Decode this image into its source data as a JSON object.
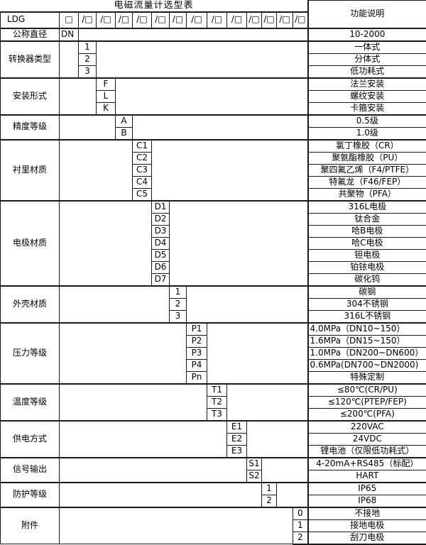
{
  "title": "电磁流量计选型表",
  "right_header": "功能说明",
  "model": {
    "prefix": "LDG",
    "first_box": "□",
    "slash_boxes": [
      "/□",
      "/□",
      "/□",
      "/□",
      "/□",
      "/□",
      "/□",
      "/□",
      "/□",
      "/□",
      "/□",
      "/□",
      "/□"
    ]
  },
  "colors": {
    "border": "#1a1a1a",
    "background": "#ffffff",
    "text": "#000000"
  },
  "categories": [
    {
      "key": "diameter",
      "label": "公称直径",
      "code_col": 0,
      "rows": [
        {
          "code": "DN",
          "desc": "10-2000"
        }
      ]
    },
    {
      "key": "converter-type",
      "label": "转换器类型",
      "code_col": 1,
      "rows": [
        {
          "code": "1",
          "desc": "一体式"
        },
        {
          "code": "2",
          "desc": "分体式"
        },
        {
          "code": "3",
          "desc": "低功耗式"
        }
      ]
    },
    {
      "key": "installation",
      "label": "安装形式",
      "code_col": 2,
      "rows": [
        {
          "code": "F",
          "desc": "法兰安装"
        },
        {
          "code": "L",
          "desc": "螺纹安装"
        },
        {
          "code": "K",
          "desc": "卡箍安装"
        }
      ]
    },
    {
      "key": "accuracy",
      "label": "精度等级",
      "code_col": 3,
      "rows": [
        {
          "code": "A",
          "desc": "0.5级"
        },
        {
          "code": "B",
          "desc": "1.0级"
        }
      ]
    },
    {
      "key": "lining",
      "label": "衬里材质",
      "code_col": 4,
      "rows": [
        {
          "code": "C1",
          "desc": "氯丁橡胶（CR）"
        },
        {
          "code": "C2",
          "desc": "聚氨酯橡胶（PU）"
        },
        {
          "code": "C3",
          "desc": "聚四氟乙烯（F4/PTFE）"
        },
        {
          "code": "C4",
          "desc": "特氟龙（F46/FEP）"
        },
        {
          "code": "C5",
          "desc": "共聚物（PFA）"
        }
      ]
    },
    {
      "key": "electrode",
      "label": "电极材质",
      "code_col": 5,
      "rows": [
        {
          "code": "D1",
          "desc": "316L电极"
        },
        {
          "code": "D2",
          "desc": "钛合金"
        },
        {
          "code": "D3",
          "desc": "哈B电极"
        },
        {
          "code": "D4",
          "desc": "哈C电极"
        },
        {
          "code": "D5",
          "desc": "钽电极"
        },
        {
          "code": "D6",
          "desc": "铂铱电极"
        },
        {
          "code": "D7",
          "desc": "碳化钨"
        }
      ]
    },
    {
      "key": "housing",
      "label": "外壳材质",
      "code_col": 6,
      "rows": [
        {
          "code": "1",
          "desc": "碳钢"
        },
        {
          "code": "2",
          "desc": "304不锈钢"
        },
        {
          "code": "3",
          "desc": "316L不锈钢"
        }
      ]
    },
    {
      "key": "pressure",
      "label": "压力等级",
      "code_col": 7,
      "rows": [
        {
          "code": "P1",
          "desc": "4.0MPa（DN10~150）",
          "align": "left"
        },
        {
          "code": "P2",
          "desc": "1.6MPa（DN15~150）",
          "align": "left"
        },
        {
          "code": "P3",
          "desc": "1.0MPa（DN200~DN600）",
          "align": "left"
        },
        {
          "code": "P4",
          "desc": "0.6MPa(DN700~DN2000)",
          "align": "left"
        },
        {
          "code": "Pn",
          "desc": "特殊定制"
        }
      ]
    },
    {
      "key": "temperature",
      "label": "温度等级",
      "code_col": 8,
      "rows": [
        {
          "code": "T1",
          "desc": "≤80℃(CR/PU)"
        },
        {
          "code": "T2",
          "desc": "≤120℃(PTEP/FEP)"
        },
        {
          "code": "T3",
          "desc": "≤200℃(PFA)"
        }
      ]
    },
    {
      "key": "power-supply",
      "label": "供电方式",
      "code_col": 9,
      "rows": [
        {
          "code": "E1",
          "desc": "220VAC"
        },
        {
          "code": "E2",
          "desc": "24VDC"
        },
        {
          "code": "E3",
          "desc": "锂电池（仅限低功耗式）"
        }
      ]
    },
    {
      "key": "signal-output",
      "label": "信号输出",
      "code_col": 10,
      "rows": [
        {
          "code": "S1",
          "desc": "4-20mA+RS485（标配）"
        },
        {
          "code": "S2",
          "desc": "HART"
        }
      ]
    },
    {
      "key": "protection",
      "label": "防护等级",
      "code_col": 11,
      "rows": [
        {
          "code": "1",
          "desc": "IP65"
        },
        {
          "code": "2",
          "desc": "IP68"
        }
      ]
    },
    {
      "key": "accessories",
      "label": "附件",
      "code_col": 13,
      "rows": [
        {
          "code": "0",
          "desc": "不接地"
        },
        {
          "code": "1",
          "desc": "接地电极"
        },
        {
          "code": "2",
          "desc": "刮刀电极"
        }
      ]
    }
  ]
}
